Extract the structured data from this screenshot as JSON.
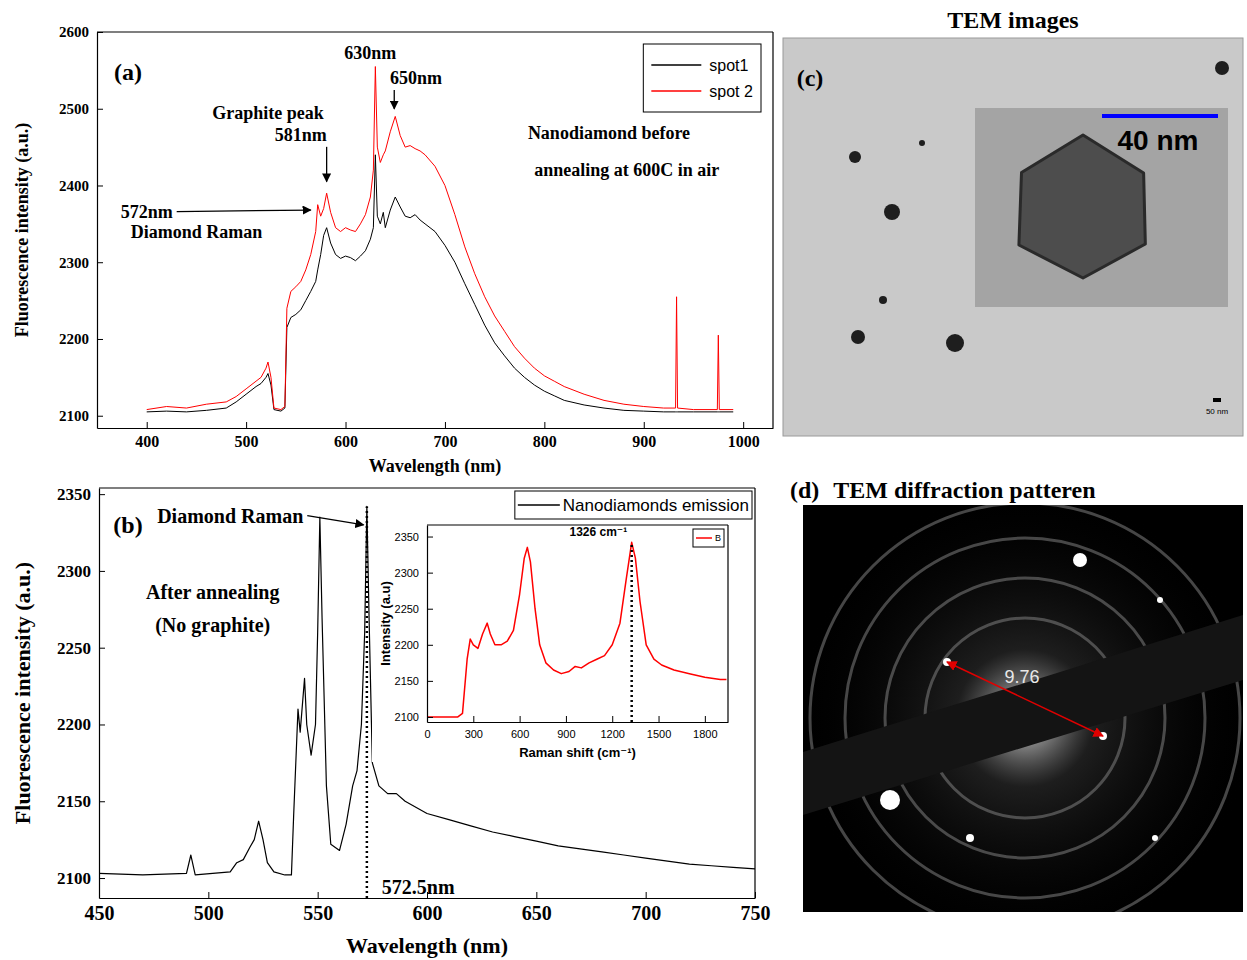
{
  "chart_data": [
    {
      "type": "line",
      "panel_label": "(a)",
      "x_label": "Wavelength (nm)",
      "y_label": "Fluorescence intensity (a.u.)",
      "xlim": [
        350,
        1030
      ],
      "ylim": [
        2084,
        2600
      ],
      "xticks": [
        400,
        500,
        600,
        700,
        800,
        900,
        1000
      ],
      "yticks": [
        2100,
        2200,
        2300,
        2400,
        2500,
        2600
      ],
      "legend": "top-right",
      "x": [
        400,
        420,
        440,
        460,
        480,
        490,
        500,
        510,
        515,
        520,
        522,
        525,
        528,
        535,
        539,
        541,
        545,
        550,
        555,
        560,
        565,
        570,
        572,
        575,
        578,
        581,
        585,
        590,
        595,
        600,
        605,
        610,
        615,
        620,
        625,
        628,
        630,
        632,
        635,
        638,
        640,
        645,
        650,
        655,
        660,
        665,
        670,
        675,
        680,
        690,
        700,
        710,
        720,
        730,
        740,
        750,
        760,
        770,
        780,
        790,
        800,
        810,
        820,
        840,
        860,
        880,
        900,
        920,
        932,
        933,
        934,
        950,
        974,
        975,
        976,
        990
      ],
      "series": [
        {
          "name": "spot1",
          "color": "#000000",
          "values": [
            2105,
            2106,
            2105,
            2107,
            2110,
            2118,
            2128,
            2138,
            2142,
            2150,
            2155,
            2140,
            2108,
            2106,
            2110,
            2215,
            2228,
            2232,
            2238,
            2250,
            2262,
            2275,
            2290,
            2310,
            2335,
            2345,
            2325,
            2310,
            2305,
            2308,
            2306,
            2302,
            2308,
            2315,
            2330,
            2345,
            2440,
            2360,
            2350,
            2365,
            2345,
            2368,
            2385,
            2372,
            2360,
            2358,
            2362,
            2355,
            2350,
            2340,
            2322,
            2300,
            2272,
            2245,
            2218,
            2195,
            2178,
            2162,
            2150,
            2140,
            2132,
            2126,
            2120,
            2114,
            2110,
            2107,
            2106,
            2105,
            2105,
            2105,
            2105,
            2105,
            2105,
            2105,
            2105,
            2105
          ]
        },
        {
          "name": "spot 2",
          "color": "#ff0000",
          "values": [
            2108,
            2112,
            2110,
            2115,
            2118,
            2125,
            2135,
            2145,
            2150,
            2162,
            2170,
            2150,
            2110,
            2108,
            2112,
            2240,
            2262,
            2268,
            2275,
            2290,
            2310,
            2340,
            2375,
            2360,
            2370,
            2390,
            2365,
            2345,
            2340,
            2345,
            2342,
            2340,
            2350,
            2362,
            2385,
            2420,
            2555,
            2450,
            2430,
            2440,
            2445,
            2470,
            2490,
            2465,
            2450,
            2452,
            2448,
            2445,
            2440,
            2425,
            2400,
            2362,
            2320,
            2285,
            2255,
            2230,
            2210,
            2190,
            2175,
            2162,
            2152,
            2145,
            2138,
            2128,
            2120,
            2115,
            2112,
            2110,
            2110,
            2255,
            2110,
            2108,
            2108,
            2205,
            2108,
            2108
          ]
        }
      ],
      "annotations": [
        {
          "text": "630nm",
          "x": 625,
          "y": 2572
        },
        {
          "text": "650nm",
          "x": 671,
          "y": 2540,
          "point": [
            649,
            2500
          ]
        },
        {
          "text": "Graphite peak",
          "x": 522,
          "y": 2495
        },
        {
          "text": "581nm",
          "x": 555,
          "y": 2466,
          "point": [
            581,
            2405
          ]
        },
        {
          "text": "572nm",
          "x": 400,
          "y": 2366,
          "point": [
            565,
            2368
          ]
        },
        {
          "text": "Diamond Raman",
          "x": 450,
          "y": 2340
        },
        {
          "text": "Nanodiamond before",
          "x": 865,
          "y": 2468
        },
        {
          "text": "annealing at 600C in air",
          "x": 883,
          "y": 2420
        }
      ]
    },
    {
      "type": "line",
      "panel_label": "(b)",
      "x_label": "Wavelength (nm)",
      "y_label": "Fluorescence intensity (a.u.)",
      "xlim": [
        450,
        750
      ],
      "ylim": [
        2087,
        2354
      ],
      "xticks": [
        450,
        500,
        550,
        600,
        650,
        700,
        750
      ],
      "yticks": [
        2100,
        2150,
        2200,
        2250,
        2300,
        2350
      ],
      "legend": "top-right",
      "x": [
        450,
        470,
        490,
        492,
        494,
        510,
        513,
        516,
        519,
        521,
        523,
        525,
        527,
        530,
        535,
        538,
        539,
        541,
        542,
        544,
        545,
        547,
        549,
        550,
        551,
        552,
        554,
        556,
        560,
        563,
        566,
        568,
        570,
        571.5,
        572.5,
        573.5,
        575,
        578,
        582,
        586,
        590,
        600,
        610,
        620,
        630,
        640,
        650,
        660,
        670,
        680,
        690,
        700,
        710,
        720,
        730,
        740,
        750
      ],
      "series": [
        {
          "name": "Nanodiamonds emission",
          "color": "#000000",
          "values": [
            2103,
            2102,
            2103,
            2115,
            2102,
            2104,
            2110,
            2112,
            2120,
            2125,
            2137,
            2125,
            2110,
            2104,
            2102,
            2102,
            2140,
            2210,
            2195,
            2230,
            2200,
            2180,
            2200,
            2260,
            2335,
            2270,
            2160,
            2122,
            2118,
            2135,
            2160,
            2170,
            2200,
            2260,
            2342,
            2270,
            2175,
            2160,
            2155,
            2155,
            2150,
            2142,
            2138,
            2134,
            2130,
            2127,
            2124,
            2121,
            2119,
            2117,
            2115,
            2113,
            2111,
            2109,
            2108,
            2107,
            2106
          ]
        }
      ],
      "annotations": [
        {
          "text": "Diamond Raman",
          "x": 510,
          "y": 2336,
          "point": [
            571,
            2330
          ]
        },
        {
          "text": "After annealing",
          "x": 502,
          "y": 2286
        },
        {
          "text": "(No graphite)",
          "x": 502,
          "y": 2265
        },
        {
          "text": "572.5nm",
          "x": 596,
          "y": 2094,
          "point": [
            572.5,
            2342
          ],
          "line_style": "dotted"
        }
      ]
    },
    {
      "type": "line",
      "x_label": "Raman shift (cm⁻¹)",
      "y_label": "Intensity (a.u)",
      "xlim": [
        0,
        1950
      ],
      "ylim": [
        2093,
        2366
      ],
      "xticks": [
        0,
        300,
        600,
        900,
        1200,
        1500,
        1800
      ],
      "yticks": [
        2100,
        2150,
        2200,
        2250,
        2300,
        2350
      ],
      "legend": "top-right",
      "x": [
        0,
        100,
        200,
        230,
        260,
        280,
        300,
        330,
        360,
        390,
        410,
        440,
        480,
        520,
        560,
        600,
        630,
        650,
        670,
        700,
        730,
        770,
        820,
        870,
        920,
        960,
        1000,
        1050,
        1100,
        1150,
        1200,
        1250,
        1290,
        1326,
        1350,
        1380,
        1420,
        1470,
        1520,
        1600,
        1700,
        1800,
        1900,
        1940
      ],
      "series": [
        {
          "name": "B",
          "color": "#ff0000",
          "values": [
            2100,
            2100,
            2100,
            2105,
            2180,
            2208,
            2200,
            2195,
            2215,
            2230,
            2215,
            2200,
            2200,
            2205,
            2220,
            2270,
            2320,
            2335,
            2315,
            2250,
            2200,
            2175,
            2165,
            2160,
            2163,
            2170,
            2168,
            2175,
            2180,
            2185,
            2200,
            2230,
            2290,
            2342,
            2320,
            2260,
            2200,
            2180,
            2172,
            2165,
            2160,
            2155,
            2152,
            2152
          ]
        }
      ],
      "annotations": [
        {
          "text": "1326 cm⁻¹",
          "x": 1110,
          "y": 2356,
          "point": [
            1326,
            2342
          ],
          "line_style": "dotted"
        }
      ]
    }
  ],
  "images": [
    {
      "panel_label": "(c)",
      "title": "TEM images",
      "scale_bar": "40 nm",
      "scale_bar_small": "50 nm"
    },
    {
      "panel_label": "(d)",
      "title": "TEM diffraction patteren",
      "measurement": 9.76
    }
  ]
}
